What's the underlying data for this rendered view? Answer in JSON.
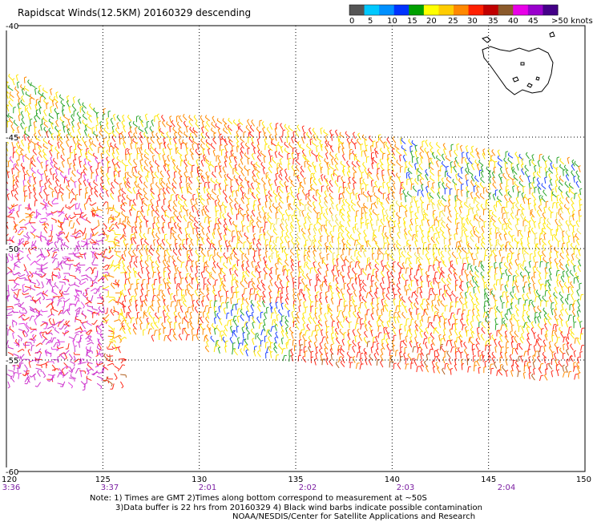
{
  "title": "Rapidscat Winds(12.5KM) 20160329 descending",
  "colorbar": {
    "labels": [
      "0",
      "5",
      "10",
      "15",
      "20",
      "25",
      "30",
      "35",
      "40",
      "45",
      ">50 knots"
    ],
    "colors": [
      "#555555",
      "#00c8ff",
      "#0090ff",
      "#0033ff",
      "#00a000",
      "#ffff00",
      "#ffcc00",
      "#ff8800",
      "#ff2000",
      "#c00000",
      "#8b5a2b",
      "#e800e8",
      "#9900cc",
      "#440088"
    ]
  },
  "axes": {
    "lon_ticks": [
      "120",
      "125",
      "130",
      "135",
      "140",
      "145",
      "150"
    ],
    "lat_ticks": [
      "-40",
      "-45",
      "-50",
      "-55",
      "-60"
    ],
    "times": [
      "3:36",
      "3:37",
      "2:01",
      "2:02",
      "2:03",
      "2:04"
    ]
  },
  "notes": {
    "line1": "Note: 1) Times are GMT 2)Times along bottom correspond to measurement at ~50S",
    "line2": "3)Data buffer is 22 hrs from 20160329 4) Black wind barbs indicate possible contamination",
    "line3": "NOAA/NESDIS/Center for Satellite Applications and Research"
  }
}
